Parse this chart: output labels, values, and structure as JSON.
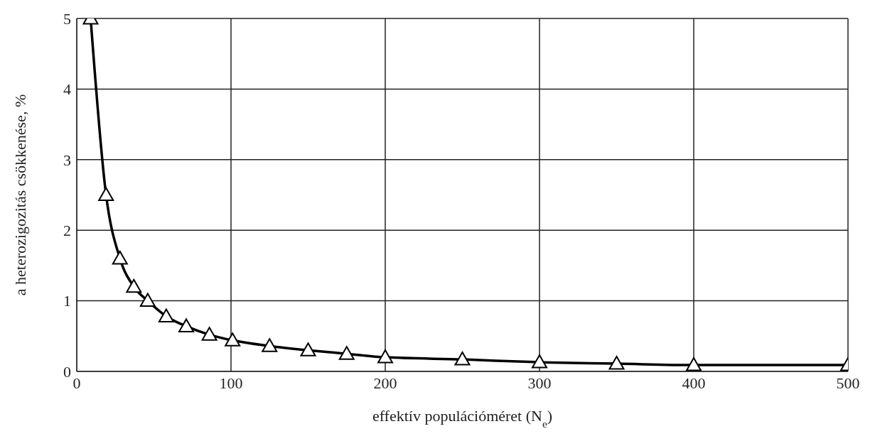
{
  "chart_data": {
    "type": "line",
    "xlabel": "effektív populációméret (N$_{e}$)",
    "ylabel": "a heterozigozitás csökkenése, %",
    "x": [
      9,
      19,
      28,
      37,
      46,
      58,
      71,
      86,
      101,
      125,
      150,
      175,
      200,
      250,
      300,
      350,
      400,
      500
    ],
    "series": [
      {
        "color": "#000000",
        "values": [
          5,
          2.5,
          1.6,
          1.2,
          1.0,
          0.78,
          0.64,
          0.52,
          0.44,
          0.36,
          0.3,
          0.25,
          0.2,
          0.17,
          0.13,
          0.11,
          0.09,
          0.09
        ]
      }
    ],
    "xlim": [
      0,
      500
    ],
    "xticks": [
      0,
      100,
      200,
      300,
      400,
      500
    ],
    "ylim": [
      0,
      5
    ],
    "yticks": [
      0,
      1,
      2,
      3,
      4,
      5
    ],
    "grid": true,
    "marker": "triangle",
    "line_style": "solid",
    "legend": false
  }
}
